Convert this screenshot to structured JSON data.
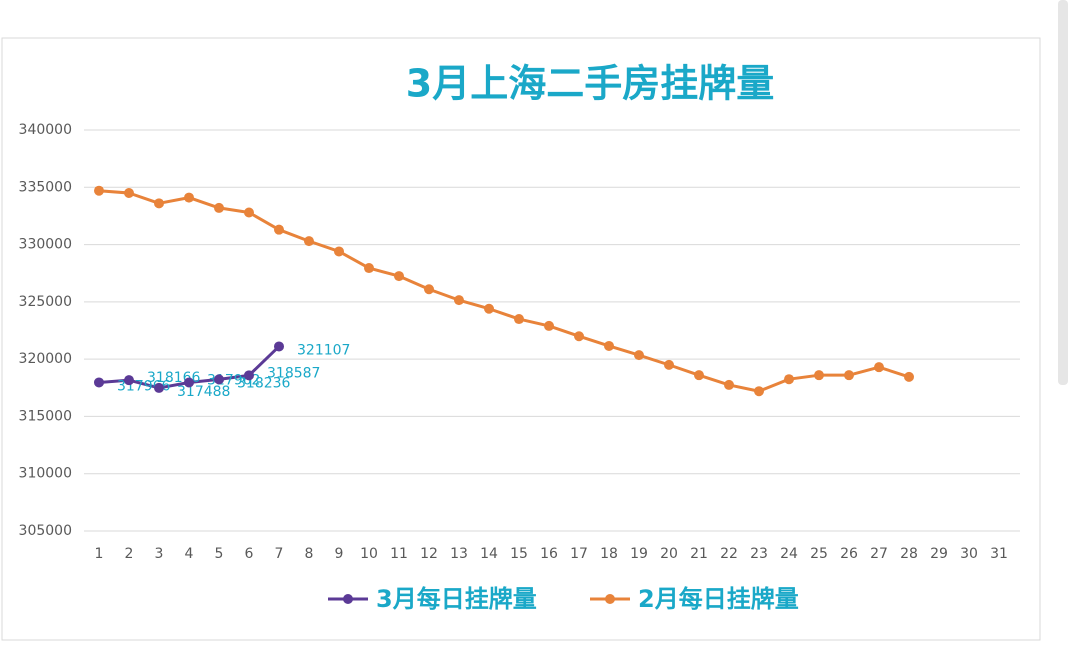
{
  "chart_data": {
    "type": "line",
    "title": "3月上海二手房挂牌量",
    "categories": [
      "1",
      "2",
      "3",
      "4",
      "5",
      "6",
      "7",
      "8",
      "9",
      "10",
      "11",
      "12",
      "13",
      "14",
      "15",
      "16",
      "17",
      "18",
      "19",
      "20",
      "21",
      "22",
      "23",
      "24",
      "25",
      "26",
      "27",
      "28",
      "29",
      "30",
      "31"
    ],
    "series": [
      {
        "name": "3月每日挂牌量",
        "color": "#5b3a96",
        "values": [
          317966,
          318166,
          317488,
          317962,
          318236,
          318587,
          321107,
          null,
          null,
          null,
          null,
          null,
          null,
          null,
          null,
          null,
          null,
          null,
          null,
          null,
          null,
          null,
          null,
          null,
          null,
          null,
          null,
          null,
          null,
          null,
          null
        ]
      },
      {
        "name": "2月每日挂牌量",
        "color": "#e8833a",
        "values": [
          334700,
          334500,
          333600,
          334100,
          333200,
          332800,
          331300,
          330300,
          329400,
          327950,
          327250,
          326100,
          325150,
          324400,
          323500,
          322900,
          322000,
          321150,
          320350,
          319500,
          318600,
          317750,
          317200,
          318250,
          318600,
          318600,
          319300,
          318450,
          null,
          null,
          null
        ]
      }
    ],
    "data_labels_series": 0,
    "ylim": [
      305000,
      340000
    ],
    "yticks": [
      305000,
      310000,
      315000,
      320000,
      325000,
      330000,
      335000,
      340000
    ],
    "grid": true,
    "legend": "bottom"
  }
}
